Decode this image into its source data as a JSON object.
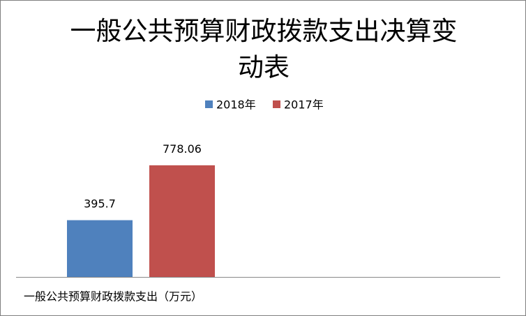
{
  "chart_data": {
    "type": "bar",
    "title": "一般公共预算财政拨款支出决算变动表",
    "categories": [
      "一般公共预算财政拨款支出（万元）"
    ],
    "series": [
      {
        "name": "2018年",
        "color": "#4f81bd",
        "values": [
          395.7
        ]
      },
      {
        "name": "2017年",
        "color": "#c0504d",
        "values": [
          778.06
        ]
      }
    ],
    "legend": "top"
  }
}
